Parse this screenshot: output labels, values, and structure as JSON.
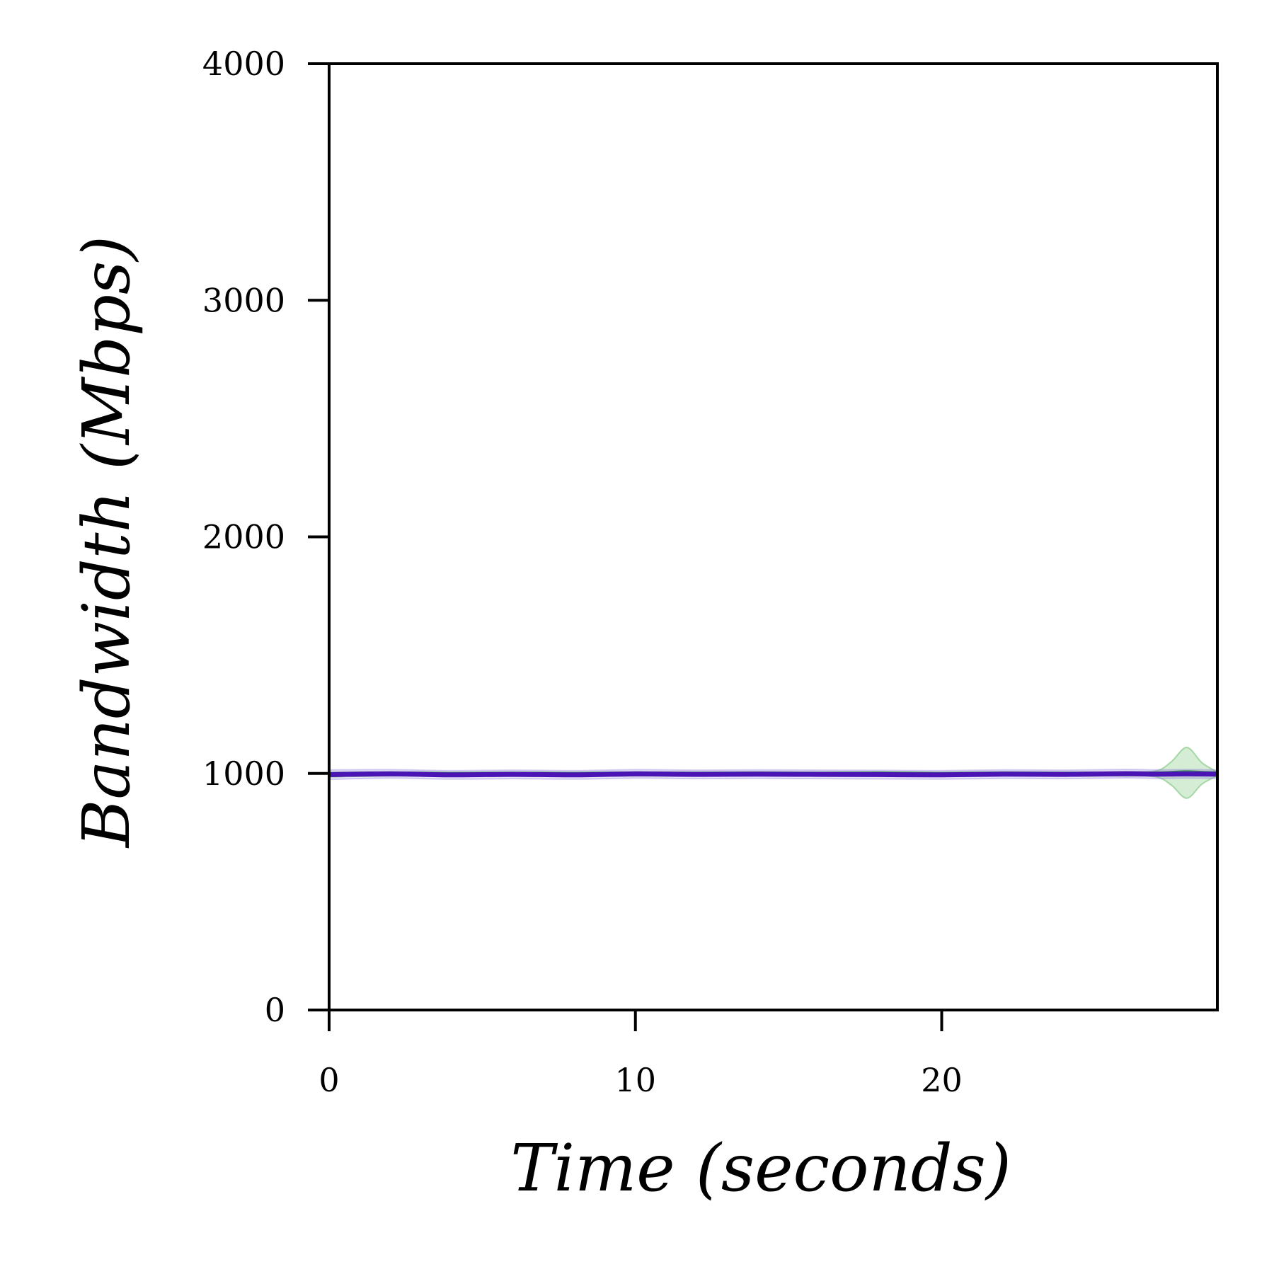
{
  "chart_data": {
    "type": "line",
    "title": "",
    "xlabel": "Time (seconds)",
    "ylabel": "Bandwidth (Mbps)",
    "xlim": [
      0,
      29
    ],
    "ylim": [
      0,
      4000
    ],
    "xticks": [
      0,
      10,
      20
    ],
    "xtick_labels": [
      "0",
      "10",
      "20"
    ],
    "yticks": [
      0,
      1000,
      2000,
      3000,
      4000
    ],
    "ytick_labels": [
      "0",
      "1000",
      "2000",
      "3000",
      "4000"
    ],
    "grid": false,
    "legend": "none",
    "series": [
      {
        "color": "#2ca02c",
        "band_color": "#2ca02c",
        "x": [
          0,
          2,
          4,
          6,
          8,
          10,
          12,
          14,
          16,
          18,
          20,
          22,
          24,
          26,
          27,
          27.5,
          28,
          28.5,
          29
        ],
        "y": [
          995,
          998,
          996,
          997,
          996,
          998,
          997,
          998,
          997,
          998,
          996,
          998,
          997,
          998,
          998,
          1000,
          1003,
          1000,
          998
        ],
        "band_lower": [
          985,
          990,
          988,
          989,
          988,
          990,
          989,
          990,
          989,
          990,
          988,
          990,
          989,
          990,
          985,
          950,
          895,
          955,
          990
        ],
        "band_upper": [
          1005,
          1006,
          1004,
          1005,
          1004,
          1006,
          1005,
          1006,
          1005,
          1006,
          1004,
          1006,
          1005,
          1006,
          1011,
          1050,
          1110,
          1045,
          1006
        ]
      },
      {
        "color": "#4b14b4",
        "band_color": "#8c78dc",
        "x": [
          0,
          2,
          4,
          6,
          8,
          10,
          12,
          14,
          16,
          18,
          20,
          22,
          24,
          26,
          27,
          28,
          29
        ],
        "y": [
          995,
          998,
          994,
          996,
          994,
          998,
          996,
          997,
          996,
          995,
          994,
          997,
          996,
          999,
          997,
          998,
          997
        ],
        "band_lower": [
          975,
          980,
          976,
          978,
          976,
          980,
          978,
          979,
          978,
          977,
          976,
          979,
          978,
          981,
          979,
          980,
          979
        ],
        "band_upper": [
          1015,
          1016,
          1012,
          1014,
          1012,
          1016,
          1014,
          1015,
          1014,
          1013,
          1012,
          1015,
          1014,
          1017,
          1015,
          1016,
          1015
        ]
      }
    ]
  }
}
